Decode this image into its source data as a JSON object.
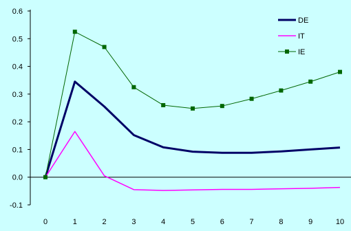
{
  "chart_data": {
    "type": "line",
    "title": "",
    "xlabel": "",
    "ylabel": "",
    "x": [
      0,
      1,
      2,
      3,
      4,
      5,
      6,
      7,
      8,
      9,
      10
    ],
    "xlim": [
      0,
      10
    ],
    "ylim": [
      -0.1,
      0.6
    ],
    "yticks": [
      "0.6",
      "0.5",
      "0.4",
      "0.3",
      "0.2",
      "0.1",
      "0.0",
      "-0.1"
    ],
    "xticks": [
      "0",
      "1",
      "2",
      "3",
      "4",
      "5",
      "6",
      "7",
      "8",
      "9",
      "10"
    ],
    "grid": false,
    "legend_position": "top-right",
    "series": [
      {
        "name": "DE",
        "color": "#000066",
        "marker": "none",
        "values": [
          0.0,
          0.345,
          0.255,
          0.152,
          0.108,
          0.092,
          0.088,
          0.088,
          0.093,
          0.1,
          0.107
        ]
      },
      {
        "name": "IT",
        "color": "#ff00ff",
        "marker": "none",
        "values": [
          0.0,
          0.165,
          0.005,
          -0.045,
          -0.048,
          -0.046,
          -0.044,
          -0.044,
          -0.042,
          -0.04,
          -0.037
        ]
      },
      {
        "name": "IE",
        "color": "#006600",
        "marker": "square",
        "values": [
          0.0,
          0.525,
          0.47,
          0.325,
          0.26,
          0.248,
          0.257,
          0.283,
          0.313,
          0.345,
          0.38
        ]
      }
    ]
  }
}
